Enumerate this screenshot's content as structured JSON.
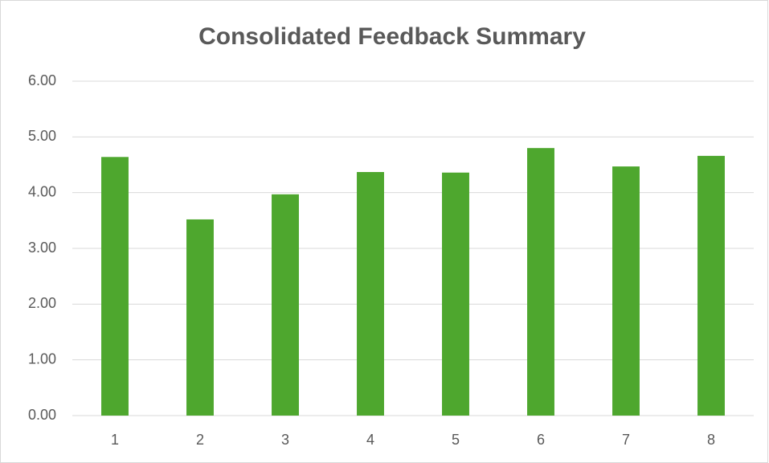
{
  "chart_data": {
    "type": "bar",
    "title": "Consolidated Feedback Summary",
    "categories": [
      "1",
      "2",
      "3",
      "4",
      "5",
      "6",
      "7",
      "8"
    ],
    "values": [
      4.64,
      3.52,
      3.97,
      4.37,
      4.36,
      4.8,
      4.47,
      4.66
    ],
    "color": "#4ea72e",
    "ylim": [
      0,
      6
    ],
    "yticks": [
      {
        "value": 0,
        "label": "0.00"
      },
      {
        "value": 1,
        "label": "1.00"
      },
      {
        "value": 2,
        "label": "2.00"
      },
      {
        "value": 3,
        "label": "3.00"
      },
      {
        "value": 4,
        "label": "4.00"
      },
      {
        "value": 5,
        "label": "5.00"
      },
      {
        "value": 6,
        "label": "6.00"
      }
    ],
    "grid": true
  }
}
